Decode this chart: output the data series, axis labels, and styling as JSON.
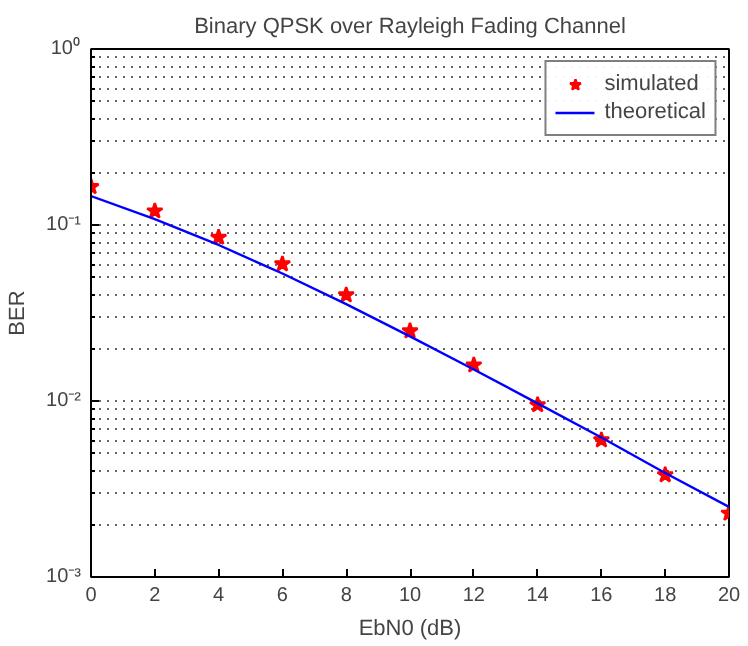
{
  "chart_data": {
    "type": "line",
    "title": "Binary QPSK over Rayleigh Fading Channel",
    "xlabel": "EbN0 (dB)",
    "ylabel": "BER",
    "log": "y",
    "xlim": [
      0,
      20
    ],
    "xticks": [
      0,
      2,
      4,
      6,
      8,
      10,
      12,
      14,
      16,
      18,
      20
    ],
    "ylim": [
      0.001,
      1
    ],
    "yticks": [
      {
        "value": 0.001,
        "label": "10⁻³"
      },
      {
        "value": 0.01,
        "label": "10⁻²"
      },
      {
        "value": 0.1,
        "label": "10⁻¹"
      },
      {
        "value": 1,
        "label": "10⁰"
      }
    ],
    "grid": "y",
    "legend": "top right",
    "series": [
      {
        "name": "simulated",
        "type": "scatter",
        "marker": "star",
        "color": "#ff0000",
        "x": [
          0,
          2,
          4,
          6,
          8,
          10,
          12,
          14,
          16,
          18,
          20
        ],
        "values": [
          0.165,
          0.12,
          0.085,
          0.06,
          0.04,
          0.025,
          0.016,
          0.0095,
          0.006,
          0.0038,
          0.0023
        ]
      },
      {
        "name": "theoretical",
        "type": "line",
        "line_style": "solid",
        "color": "#0000ff",
        "x": [
          0,
          2,
          4,
          6,
          8,
          10,
          12,
          14,
          16,
          18,
          20
        ],
        "values": [
          0.146,
          0.108,
          0.077,
          0.053,
          0.0355,
          0.0233,
          0.0151,
          0.0097,
          0.0062,
          0.0039,
          0.0025
        ]
      }
    ]
  }
}
